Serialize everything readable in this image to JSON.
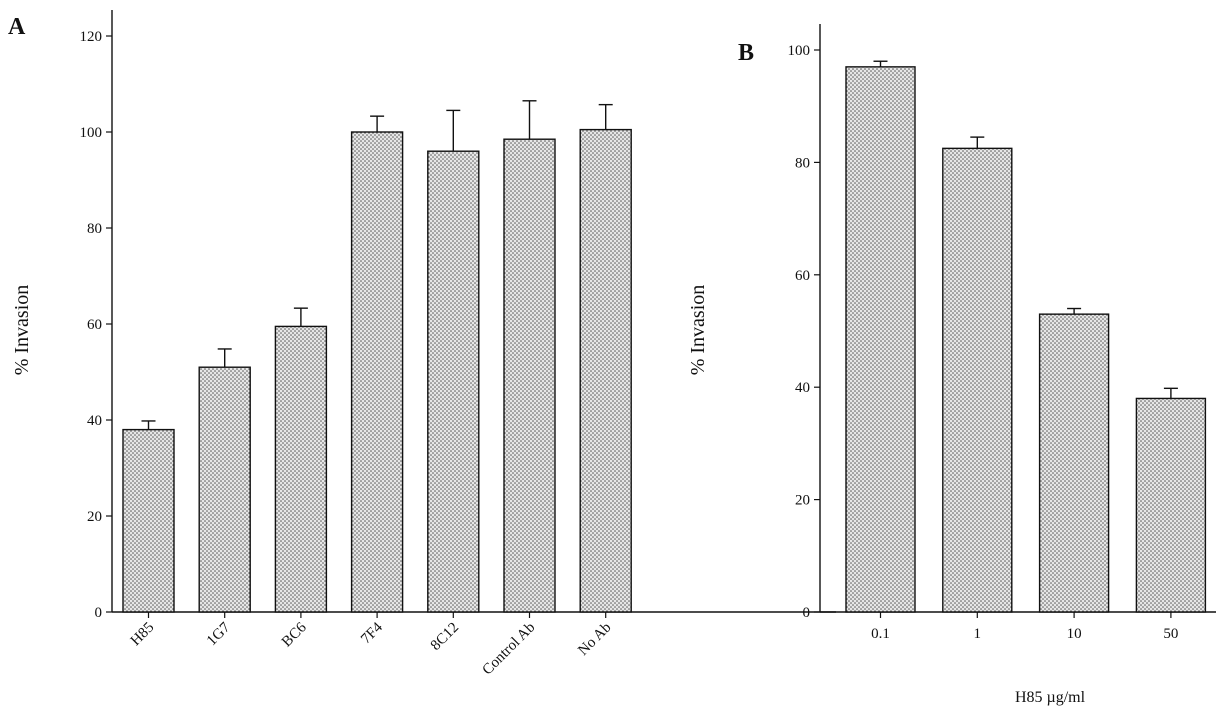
{
  "chart_data": [
    {
      "type": "bar",
      "panel_label": "A",
      "categories": [
        "H85",
        "1G7",
        "BC6",
        "7F4",
        "8C12",
        "Control Ab",
        "No Ab"
      ],
      "values": [
        38,
        51,
        59.5,
        100,
        96,
        98.5,
        100.5
      ],
      "errors": [
        1.8,
        3.8,
        3.8,
        3.3,
        8.5,
        8,
        5.2
      ],
      "xlabel": "",
      "ylabel": "% Invasion",
      "ylim": [
        0,
        120
      ],
      "yticks": [
        0,
        20,
        40,
        60,
        80,
        100,
        120
      ],
      "grid": false,
      "bar_fill": "#dcdcdc"
    },
    {
      "type": "bar",
      "panel_label": "B",
      "categories": [
        "0.1",
        "1",
        "10",
        "50"
      ],
      "values": [
        97,
        82.5,
        53,
        38
      ],
      "errors": [
        1,
        2,
        1,
        1.8
      ],
      "xlabel": "H85 µg/ml",
      "ylabel": "% Invasion",
      "ylim": [
        0,
        100
      ],
      "yticks": [
        0,
        20,
        40,
        60,
        80,
        100
      ],
      "grid": false,
      "bar_fill": "#dcdcdc"
    }
  ]
}
